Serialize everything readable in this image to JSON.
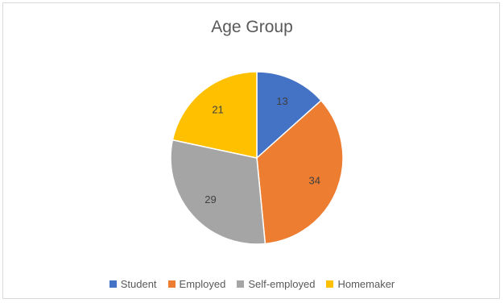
{
  "chart_data": {
    "type": "pie",
    "title": "Age Group",
    "categories": [
      "Student",
      "Employed",
      "Self-employed",
      "Homemaker"
    ],
    "values": [
      13,
      34,
      29,
      21
    ],
    "colors": [
      "#4472c4",
      "#ed7d31",
      "#a5a5a5",
      "#ffc000"
    ],
    "data_labels": [
      "13",
      "34",
      "29",
      "21"
    ],
    "legend_position": "bottom",
    "start_angle": "12 o'clock, clockwise"
  }
}
